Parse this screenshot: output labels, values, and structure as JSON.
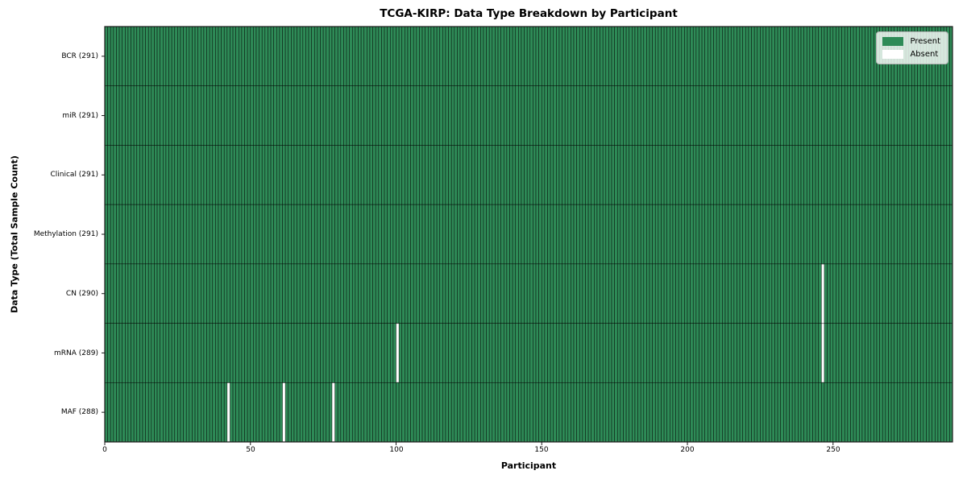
{
  "figure": {
    "title": "TCGA-KIRP: Data Type Breakdown by Participant",
    "xlabel": "Participant",
    "ylabel": "Data Type (Total Sample Count)"
  },
  "legend": {
    "items": [
      {
        "name": "present",
        "label": "Present",
        "color": "#2e8b57"
      },
      {
        "name": "absent",
        "label": "Absent",
        "color": "#ffffff"
      }
    ]
  },
  "chart_data": {
    "type": "heatmap",
    "title": "TCGA-KIRP: Data Type Breakdown by Participant",
    "xlabel": "Participant",
    "ylabel": "Data Type (Total Sample Count)",
    "n_participants": 291,
    "xlim": [
      0,
      291
    ],
    "x_ticks": [
      0,
      50,
      100,
      150,
      200,
      250
    ],
    "grid": false,
    "legend_position": "upper right",
    "legend_labels": [
      "Present",
      "Absent"
    ],
    "rows": [
      {
        "label": "BCR (291)",
        "data_type": "BCR",
        "present_count": 291,
        "absent_count": 0,
        "absent_participants": []
      },
      {
        "label": "miR (291)",
        "data_type": "miR",
        "present_count": 291,
        "absent_count": 0,
        "absent_participants": []
      },
      {
        "label": "Clinical (291)",
        "data_type": "Clinical",
        "present_count": 291,
        "absent_count": 0,
        "absent_participants": []
      },
      {
        "label": "Methylation (291)",
        "data_type": "Methylation",
        "present_count": 291,
        "absent_count": 0,
        "absent_participants": []
      },
      {
        "label": "CN (290)",
        "data_type": "CN",
        "present_count": 290,
        "absent_count": 1,
        "absent_participants": [
          246
        ]
      },
      {
        "label": "mRNA (289)",
        "data_type": "mRNA",
        "present_count": 289,
        "absent_count": 2,
        "absent_participants": [
          100,
          246
        ]
      },
      {
        "label": "MAF (288)",
        "data_type": "MAF",
        "present_count": 288,
        "absent_count": 3,
        "absent_participants": [
          42,
          61,
          78
        ]
      }
    ],
    "colors": {
      "present": "#2e8b57",
      "absent": "#ffffff",
      "bar_edge": "rgba(0,0,0,0.75)",
      "row_divider": "#7f7f7f",
      "spine": "#1a1a1a"
    }
  }
}
